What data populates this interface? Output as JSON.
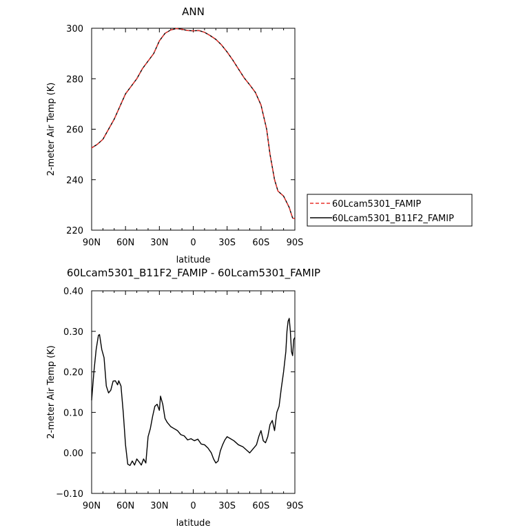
{
  "chart_data": [
    {
      "type": "line",
      "title": "ANN",
      "xlabel": "latitude",
      "ylabel": "2-meter Air Temp (K)",
      "xlim": [
        90,
        -90
      ],
      "ylim": [
        220,
        300
      ],
      "x_ticks": [
        90,
        60,
        30,
        0,
        -30,
        -60,
        -90
      ],
      "x_tick_labels": [
        "90N",
        "60N",
        "30N",
        "0",
        "30S",
        "60S",
        "90S"
      ],
      "y_ticks": [
        220,
        240,
        260,
        280,
        300
      ],
      "y_tick_labels": [
        "220",
        "240",
        "260",
        "280",
        "300"
      ],
      "grid": false,
      "legend_position": "right",
      "series": [
        {
          "name": "60Lcam5301_FAMIP",
          "color": "#e8302a",
          "dash": "dashed",
          "points": [
            [
              90,
              252.6
            ],
            [
              85,
              254
            ],
            [
              80,
              256
            ],
            [
              75,
              260
            ],
            [
              70,
              264
            ],
            [
              65,
              269
            ],
            [
              60,
              274
            ],
            [
              55,
              277
            ],
            [
              50,
              280
            ],
            [
              45,
              284
            ],
            [
              40,
              287
            ],
            [
              35,
              290
            ],
            [
              30,
              295
            ],
            [
              25,
              298
            ],
            [
              20,
              299.3
            ],
            [
              15,
              299.9
            ],
            [
              10,
              299.6
            ],
            [
              5,
              299.1
            ],
            [
              0,
              299
            ],
            [
              -5,
              299.1
            ],
            [
              -10,
              298.4
            ],
            [
              -15,
              297.1
            ],
            [
              -20,
              295.6
            ],
            [
              -25,
              293.4
            ],
            [
              -30,
              290.6
            ],
            [
              -35,
              287.4
            ],
            [
              -40,
              283.9
            ],
            [
              -45,
              280.4
            ],
            [
              -50,
              277.6
            ],
            [
              -55,
              274.6
            ],
            [
              -60,
              269.6
            ],
            [
              -65,
              260
            ],
            [
              -68,
              250
            ],
            [
              -72,
              240
            ],
            [
              -75,
              235.5
            ],
            [
              -80,
              233.5
            ],
            [
              -85,
              229
            ],
            [
              -88,
              224.8
            ],
            [
              -90,
              224.6
            ]
          ]
        },
        {
          "name": "60Lcam5301_B11F2_FAMIP",
          "color": "#000000",
          "dash": "solid",
          "points": [
            [
              90,
              252.6
            ],
            [
              85,
              254
            ],
            [
              80,
              256
            ],
            [
              75,
              260
            ],
            [
              70,
              264
            ],
            [
              65,
              269
            ],
            [
              60,
              274
            ],
            [
              55,
              277
            ],
            [
              50,
              280
            ],
            [
              45,
              284
            ],
            [
              40,
              287
            ],
            [
              35,
              290
            ],
            [
              30,
              295
            ],
            [
              25,
              298
            ],
            [
              20,
              299.3
            ],
            [
              15,
              299.9
            ],
            [
              10,
              299.6
            ],
            [
              5,
              299.1
            ],
            [
              0,
              299
            ],
            [
              -5,
              299.1
            ],
            [
              -10,
              298.4
            ],
            [
              -15,
              297.1
            ],
            [
              -20,
              295.6
            ],
            [
              -25,
              293.4
            ],
            [
              -30,
              290.6
            ],
            [
              -35,
              287.4
            ],
            [
              -40,
              283.9
            ],
            [
              -45,
              280.4
            ],
            [
              -50,
              277.6
            ],
            [
              -55,
              274.6
            ],
            [
              -60,
              269.6
            ],
            [
              -65,
              260
            ],
            [
              -68,
              250
            ],
            [
              -72,
              240
            ],
            [
              -75,
              235.5
            ],
            [
              -80,
              233.5
            ],
            [
              -85,
              229
            ],
            [
              -88,
              224.8
            ],
            [
              -90,
              224.6
            ]
          ]
        }
      ]
    },
    {
      "type": "line",
      "title": "60Lcam5301_B11F2_FAMIP - 60Lcam5301_FAMIP",
      "xlabel": "latitude",
      "ylabel": "2-meter Air Temp (K)",
      "xlim": [
        90,
        -90
      ],
      "ylim": [
        -0.1,
        0.4
      ],
      "x_ticks": [
        90,
        60,
        30,
        0,
        -30,
        -60,
        -90
      ],
      "x_tick_labels": [
        "90N",
        "60N",
        "30N",
        "0",
        "30S",
        "60S",
        "90S"
      ],
      "y_ticks": [
        -0.1,
        0.0,
        0.1,
        0.2,
        0.3,
        0.4
      ],
      "y_tick_labels": [
        "−0.10",
        "0.00",
        "0.10",
        "0.20",
        "0.30",
        "0.40"
      ],
      "grid": false,
      "series": [
        {
          "name": "",
          "color": "#000000",
          "dash": "solid",
          "points": [
            [
              90,
              0.13
            ],
            [
              88,
              0.2
            ],
            [
              86,
              0.255
            ],
            [
              84,
              0.29
            ],
            [
              83,
              0.292
            ],
            [
              81,
              0.255
            ],
            [
              79,
              0.235
            ],
            [
              77,
              0.165
            ],
            [
              75,
              0.148
            ],
            [
              73,
              0.155
            ],
            [
              71,
              0.177
            ],
            [
              69,
              0.178
            ],
            [
              67,
              0.168
            ],
            [
              66,
              0.178
            ],
            [
              64,
              0.165
            ],
            [
              62,
              0.1
            ],
            [
              60,
              0.02
            ],
            [
              58,
              -0.028
            ],
            [
              56,
              -0.031
            ],
            [
              54,
              -0.02
            ],
            [
              52,
              -0.03
            ],
            [
              50,
              -0.015
            ],
            [
              48,
              -0.022
            ],
            [
              46,
              -0.03
            ],
            [
              44,
              -0.015
            ],
            [
              42,
              -0.025
            ],
            [
              40,
              0.04
            ],
            [
              38,
              0.06
            ],
            [
              36,
              0.09
            ],
            [
              34,
              0.115
            ],
            [
              32,
              0.12
            ],
            [
              30,
              0.105
            ],
            [
              29,
              0.14
            ],
            [
              27,
              0.12
            ],
            [
              25,
              0.085
            ],
            [
              23,
              0.075
            ],
            [
              20,
              0.065
            ],
            [
              17,
              0.06
            ],
            [
              14,
              0.055
            ],
            [
              11,
              0.045
            ],
            [
              8,
              0.042
            ],
            [
              5,
              0.032
            ],
            [
              2,
              0.035
            ],
            [
              -1,
              0.03
            ],
            [
              -4,
              0.034
            ],
            [
              -7,
              0.022
            ],
            [
              -10,
              0.02
            ],
            [
              -13,
              0.012
            ],
            [
              -16,
              0.0
            ],
            [
              -18,
              -0.015
            ],
            [
              -20,
              -0.025
            ],
            [
              -22,
              -0.02
            ],
            [
              -24,
              0.005
            ],
            [
              -26,
              0.02
            ],
            [
              -28,
              0.032
            ],
            [
              -30,
              0.04
            ],
            [
              -33,
              0.035
            ],
            [
              -36,
              0.03
            ],
            [
              -40,
              0.02
            ],
            [
              -44,
              0.015
            ],
            [
              -48,
              0.005
            ],
            [
              -50,
              0.0
            ],
            [
              -53,
              0.01
            ],
            [
              -56,
              0.02
            ],
            [
              -58,
              0.04
            ],
            [
              -60,
              0.055
            ],
            [
              -62,
              0.03
            ],
            [
              -64,
              0.025
            ],
            [
              -66,
              0.04
            ],
            [
              -68,
              0.07
            ],
            [
              -70,
              0.08
            ],
            [
              -72,
              0.055
            ],
            [
              -74,
              0.1
            ],
            [
              -76,
              0.115
            ],
            [
              -78,
              0.16
            ],
            [
              -80,
              0.2
            ],
            [
              -82,
              0.25
            ],
            [
              -83,
              0.3
            ],
            [
              -84,
              0.325
            ],
            [
              -85,
              0.332
            ],
            [
              -86,
              0.3
            ],
            [
              -87,
              0.25
            ],
            [
              -88,
              0.24
            ],
            [
              -89,
              0.28
            ],
            [
              -90,
              0.285
            ]
          ]
        }
      ]
    }
  ]
}
